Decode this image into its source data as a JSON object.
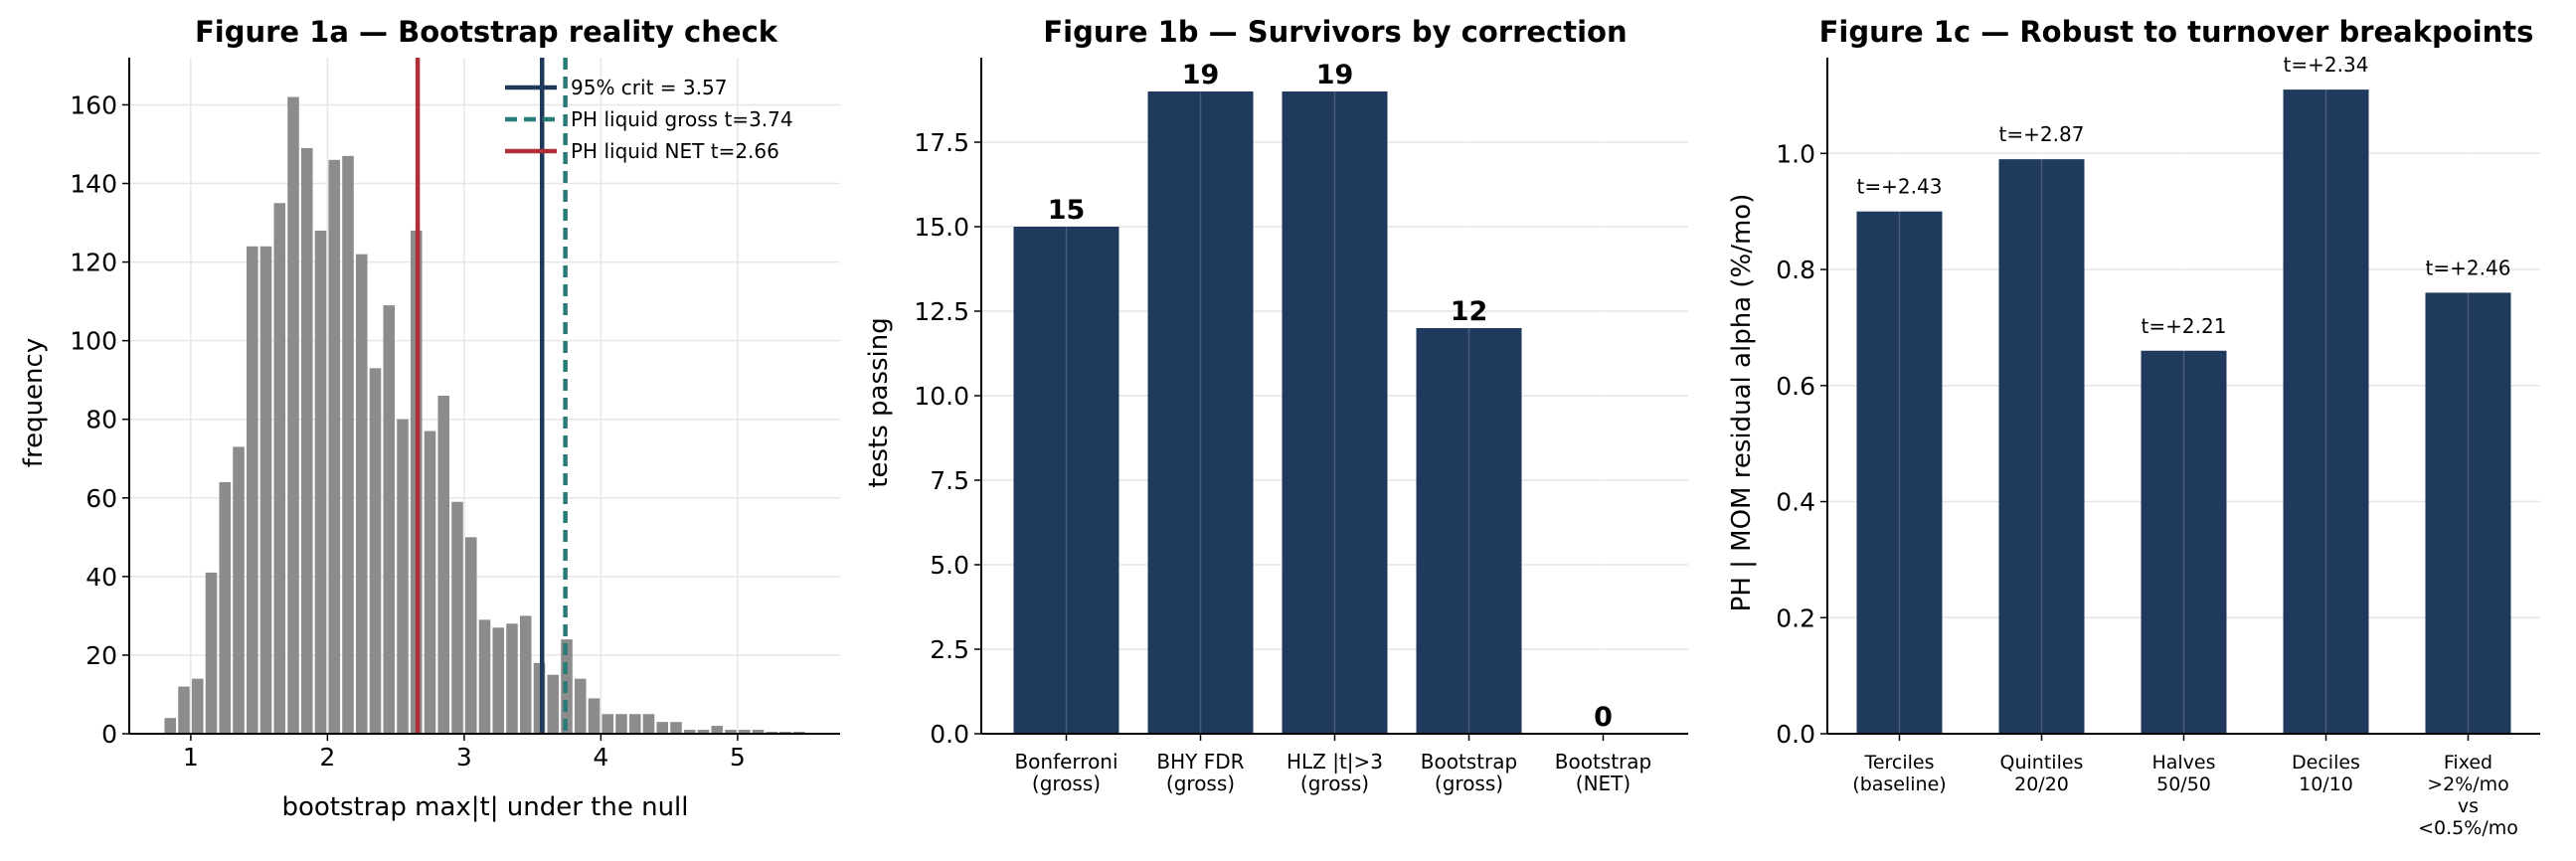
{
  "chart_data": [
    {
      "type": "bar",
      "title": "Figure 1a — Bootstrap reality check",
      "xlabel": "bootstrap max|t| under the null",
      "ylabel": "frequency",
      "xlim": [
        0.55,
        5.75
      ],
      "ylim": [
        0,
        172
      ],
      "xticks": [
        1,
        2,
        3,
        4,
        5
      ],
      "yticks": [
        0,
        20,
        40,
        60,
        80,
        100,
        120,
        140,
        160
      ],
      "bin_width": 0.1,
      "bin_centers": [
        0.85,
        0.95,
        1.05,
        1.15,
        1.25,
        1.35,
        1.45,
        1.55,
        1.65,
        1.75,
        1.85,
        1.95,
        2.05,
        2.15,
        2.25,
        2.35,
        2.45,
        2.55,
        2.65,
        2.75,
        2.85,
        2.95,
        3.05,
        3.15,
        3.25,
        3.35,
        3.45,
        3.55,
        3.65,
        3.75,
        3.85,
        3.95,
        4.05,
        4.15,
        4.25,
        4.35,
        4.45,
        4.55,
        4.65,
        4.75,
        4.85,
        4.95,
        5.05,
        5.15,
        5.25,
        5.35,
        5.45
      ],
      "counts": [
        4,
        12,
        14,
        41,
        64,
        73,
        124,
        124,
        135,
        162,
        149,
        128,
        146,
        147,
        122,
        93,
        109,
        80,
        128,
        77,
        86,
        59,
        50,
        29,
        27,
        28,
        30,
        18,
        15,
        24,
        14,
        9,
        5,
        5,
        5,
        5,
        3,
        3,
        1,
        1,
        2,
        1,
        1,
        1,
        0.5,
        0.5,
        0.5
      ],
      "bar_color": "#8c8c8c",
      "vlines": [
        {
          "label": "95% crit = 3.57",
          "x": 3.57,
          "color": "#1f3a5a",
          "style": "solid"
        },
        {
          "label": "PH liquid gross t=3.74",
          "x": 3.74,
          "color": "#2a7a78",
          "style": "dashed"
        },
        {
          "label": "PH liquid NET t=2.66",
          "x": 2.66,
          "color": "#b0303a",
          "style": "solid"
        }
      ],
      "legend": "top-right",
      "grid": true
    },
    {
      "type": "bar",
      "title": "Figure 1b — Survivors by correction",
      "xlabel": "",
      "ylabel": "tests passing",
      "categories": [
        [
          "Bonferroni",
          "(gross)"
        ],
        [
          "BHY FDR",
          "(gross)"
        ],
        [
          "HLZ |t|>3",
          "(gross)"
        ],
        [
          "Bootstrap",
          "(gross)"
        ],
        [
          "Bootstrap",
          "(NET)"
        ]
      ],
      "values": [
        15,
        19,
        19,
        12,
        0
      ],
      "value_labels": [
        "15",
        "19",
        "19",
        "12",
        "0"
      ],
      "ylim": [
        0,
        20
      ],
      "yticks": [
        0.0,
        2.5,
        5.0,
        7.5,
        10.0,
        12.5,
        15.0,
        17.5
      ],
      "ytick_labels": [
        "0.0",
        "2.5",
        "5.0",
        "7.5",
        "10.0",
        "12.5",
        "15.0",
        "17.5"
      ],
      "bar_color": "#1f3a5c",
      "grid": true
    },
    {
      "type": "bar",
      "title": "Figure 1c — Robust to turnover breakpoints",
      "xlabel": "",
      "ylabel": "PH | MOM residual alpha (%/mo)",
      "categories": [
        [
          "Terciles",
          "(baseline)"
        ],
        [
          "Quintiles",
          "20/20"
        ],
        [
          "Halves",
          "50/50"
        ],
        [
          "Deciles",
          "10/10"
        ],
        [
          "Fixed",
          ">2%/mo",
          "vs",
          "<0.5%/mo"
        ]
      ],
      "values": [
        0.9,
        0.99,
        0.66,
        1.11,
        0.76
      ],
      "value_labels": [
        "t=+2.43",
        "t=+2.87",
        "t=+2.21",
        "t=+2.34",
        "t=+2.46"
      ],
      "ylim": [
        0,
        1.165
      ],
      "yticks": [
        0.0,
        0.2,
        0.4,
        0.6,
        0.8,
        1.0
      ],
      "ytick_labels": [
        "0.0",
        "0.2",
        "0.4",
        "0.6",
        "0.8",
        "1.0"
      ],
      "bar_color": "#1f3a5c",
      "grid": true
    }
  ]
}
